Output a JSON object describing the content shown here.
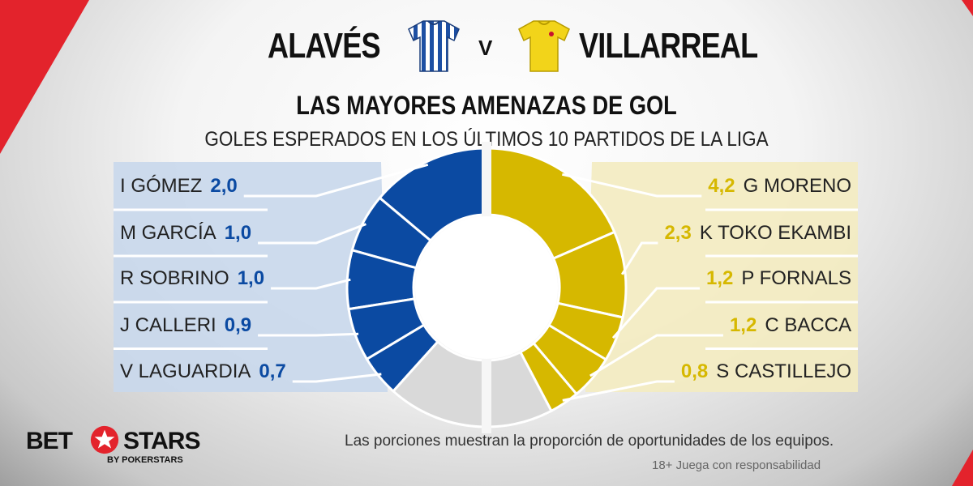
{
  "header": {
    "home_team": "ALAVÉS",
    "versus": "V",
    "away_team": "VILLARREAL",
    "home_shirt_icon": "blue-white-striped-shirt-icon",
    "away_shirt_icon": "yellow-shirt-icon"
  },
  "chart_data": {
    "type": "pie",
    "title": "LAS MAYORES AMENAZAS DE GOL",
    "subtitle": "GOLES ESPERADOS EN LOS ÚLTIMOS 10 PARTIDOS DE LA LIGA",
    "series": [
      {
        "name": "ALAVÉS",
        "color": "#0b4aa2",
        "labels": [
          "I GÓMEZ",
          "M GARCÍA",
          "R SOBRINO",
          "J CALLERI",
          "V LAGUARDIA"
        ],
        "values": [
          2.0,
          1.0,
          1.0,
          0.9,
          0.7
        ],
        "value_labels": [
          "2,0",
          "1,0",
          "1,0",
          "0,9",
          "0,7"
        ]
      },
      {
        "name": "VILLARREAL",
        "color": "#d6b800",
        "labels": [
          "G MORENO",
          "K TOKO EKAMBI",
          "P FORNALS",
          "C BACCA",
          "S CASTILLEJO"
        ],
        "values": [
          4.2,
          2.3,
          1.2,
          1.2,
          0.8
        ],
        "value_labels": [
          "4,2",
          "2,3",
          "1,2",
          "1,2",
          "0,8"
        ]
      }
    ],
    "remainder_color": "#d9d9d9",
    "home_remainder_share": 0.23,
    "away_remainder_share": 0.15
  },
  "footer": {
    "brand_bet": "BET",
    "brand_stars": "STARS",
    "brand_by": "BY POKERSTARS",
    "brand_icon": "star-icon",
    "note": "Las porciones muestran la proporción de oportunidades de los equipos.",
    "responsibility": "18+ Juega con responsabilidad"
  }
}
